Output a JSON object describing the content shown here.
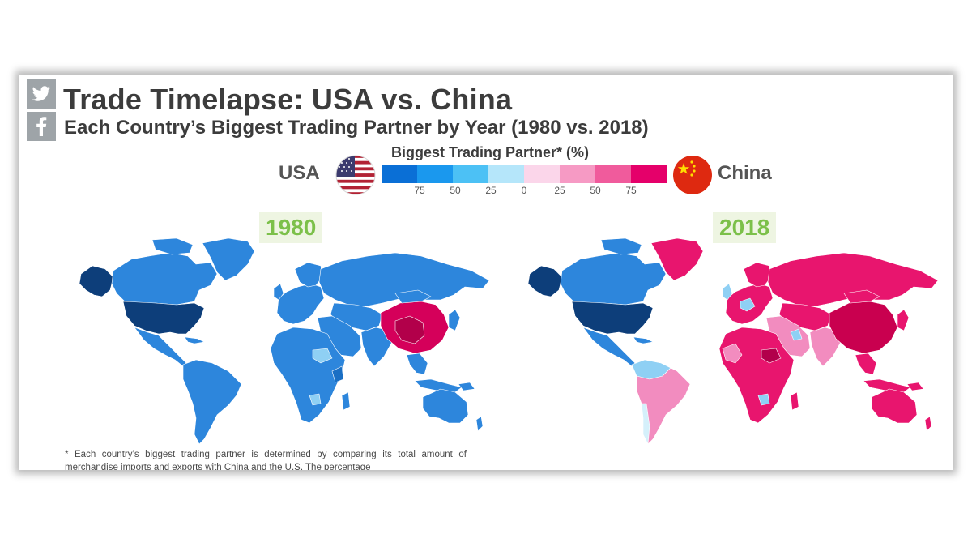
{
  "title": "Trade Timelapse: USA vs. China",
  "subtitle": "Each Country’s Biggest Trading Partner by Year (1980 vs. 2018)",
  "legend": {
    "title": "Biggest Trading Partner* (%)",
    "left_label": "USA",
    "right_label": "China",
    "ticks": [
      "75",
      "50",
      "25",
      "0",
      "25",
      "50",
      "75"
    ],
    "colors": [
      "#0a6fd6",
      "#1a98ee",
      "#4cc1f5",
      "#b5e6fa",
      "#fbd6ea",
      "#f69ac4",
      "#f05b9c",
      "#e5006a"
    ]
  },
  "maps": [
    {
      "year": "1980",
      "dominant_partner": "USA",
      "colors": {
        "land": "#2d86dc",
        "usa": "#0d3e7a",
        "china": "#d5005a",
        "light": "#8fd0f4"
      }
    },
    {
      "year": "2018",
      "dominant_partner": "China",
      "colors": {
        "land": "#e8156e",
        "usa": "#0d3e7a",
        "china": "#c9004f",
        "usa_partner": "#2d86dc",
        "light": "#8fd0f4",
        "pink": "#f28cbf"
      }
    }
  ],
  "footnote": "* Each country’s biggest trading partner is determined by comparing its total amount of merchandise imports and exports with China and the U.S. The percentage"
}
